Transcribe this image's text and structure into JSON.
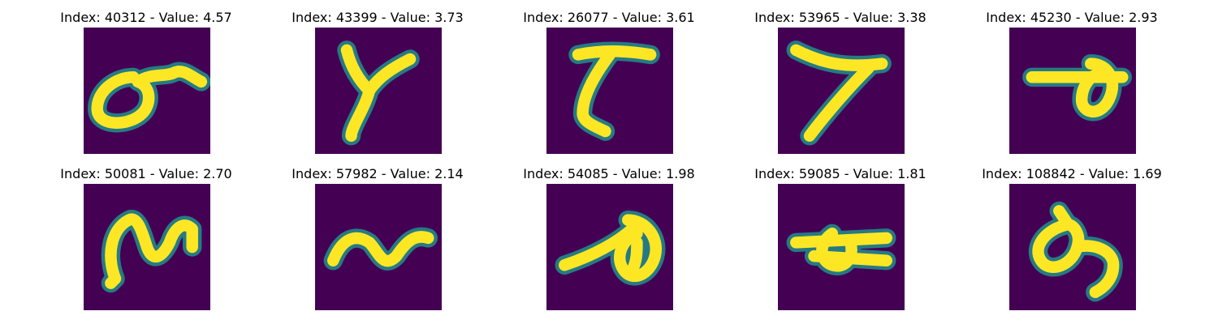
{
  "colors": {
    "background": "#440154",
    "mid": "#21908d",
    "stroke": "#fde725"
  },
  "panels": [
    {
      "title": "Index: 40312 - Value: 4.57",
      "glyph": "loop-six"
    },
    {
      "title": "Index: 43399 - Value: 3.73",
      "glyph": "y-shape"
    },
    {
      "title": "Index: 26077 - Value: 3.61",
      "glyph": "seven-hook"
    },
    {
      "title": "Index: 53965 - Value: 3.38",
      "glyph": "seven-slant"
    },
    {
      "title": "Index: 45230 - Value: 2.93",
      "glyph": "bar-loop"
    },
    {
      "title": "Index: 50081 - Value: 2.70",
      "glyph": "n-tall"
    },
    {
      "title": "Index: 57982 - Value: 2.14",
      "glyph": "n-wave"
    },
    {
      "title": "Index: 54085 - Value: 1.98",
      "glyph": "slash-loop"
    },
    {
      "title": "Index: 59085 - Value: 1.81",
      "glyph": "cross-loop"
    },
    {
      "title": "Index: 108842 - Value: 1.69",
      "glyph": "loop-tail"
    }
  ]
}
